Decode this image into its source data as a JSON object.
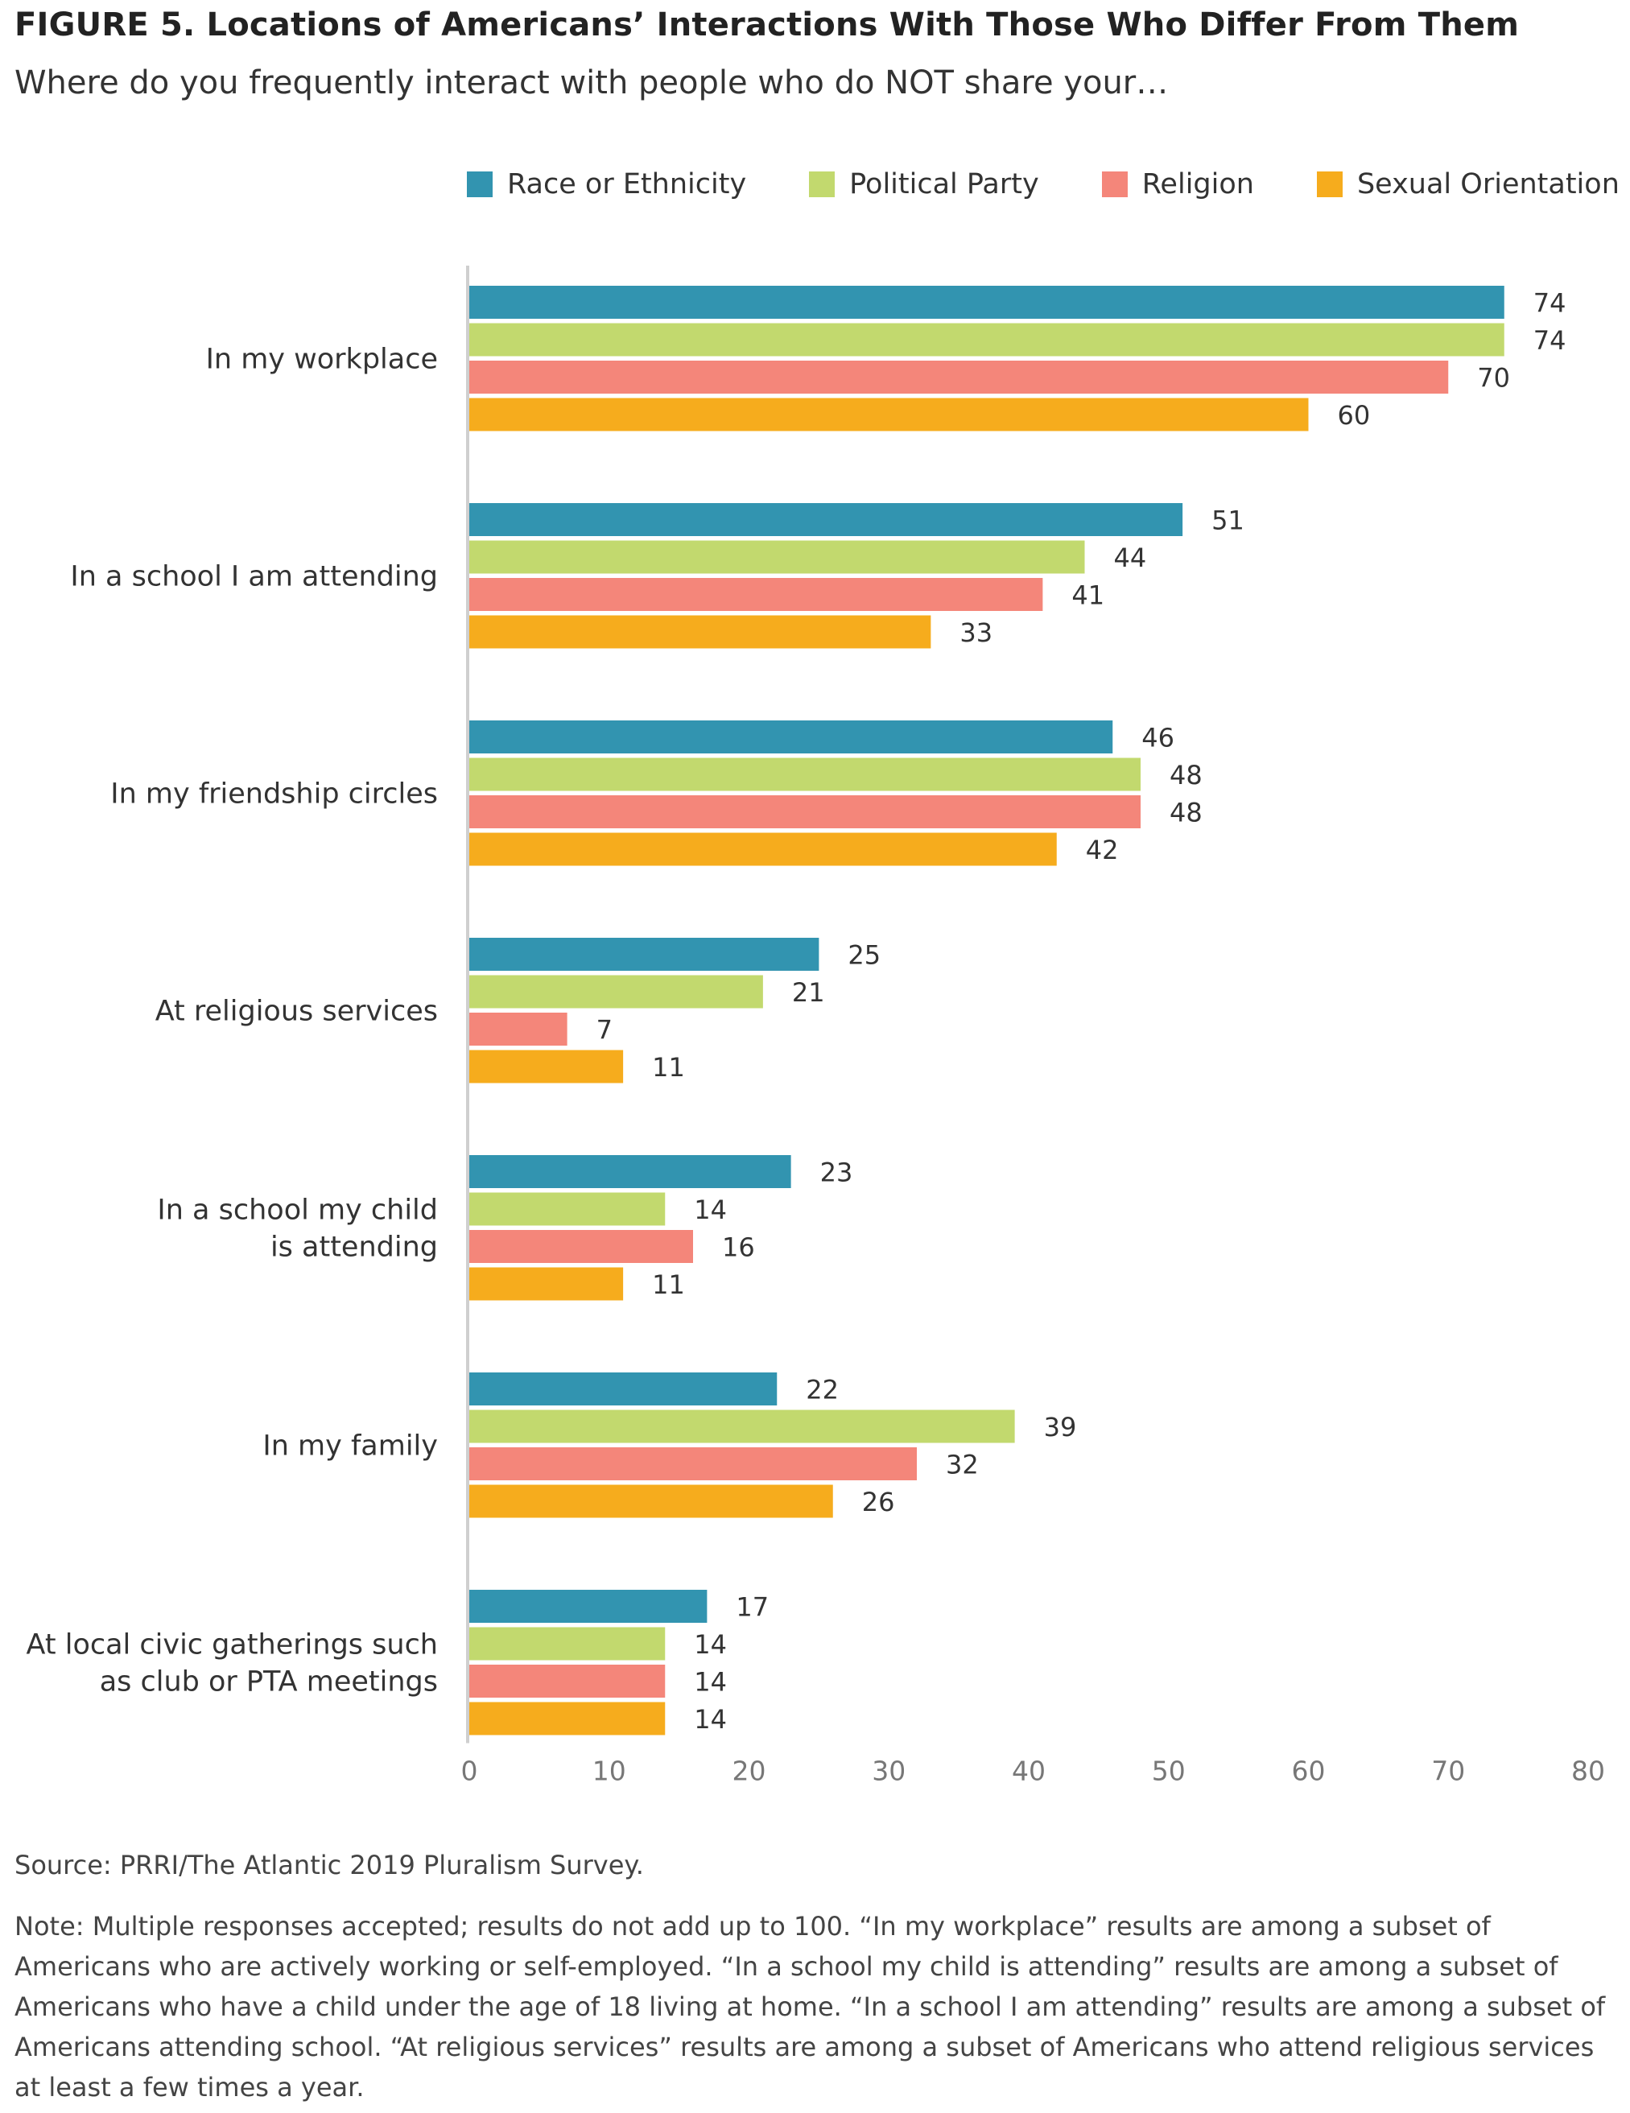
{
  "title": "FIGURE 5. Locations of Americans’ Interactions With Those Who Differ From Them",
  "subtitle": "Where do you frequently interact with people who do NOT share your…",
  "source": "Source: PRRI/The Atlantic 2019 Pluralism Survey.",
  "note": "Note: Multiple responses accepted; results do not add up to 100. “In my workplace” results are among a subset of Americans who are actively working or self-employed. “In a school my child is attending” results are among a subset of Americans who have a child under the age of 18 living at home. “In a school I am attending” results are among a subset of Americans attending school. “At religious services” results are among a subset of Americans who attend religious services at least a few times a year.",
  "chart_data": {
    "type": "bar",
    "orientation": "horizontal",
    "title": "FIGURE 5. Locations of Americans’ Interactions With Those Who Differ From Them",
    "subtitle": "Where do you frequently interact with people who do NOT share your…",
    "categories": [
      [
        "In my workplace"
      ],
      [
        "In a school I am attending"
      ],
      [
        "In my friendship circles"
      ],
      [
        "At religious services"
      ],
      [
        "In a school my child",
        "is attending"
      ],
      [
        "In my family"
      ],
      [
        "At local civic gatherings such",
        "as club or PTA meetings"
      ]
    ],
    "series": [
      {
        "name": "Race or Ethnicity",
        "color": "#3294b0",
        "values": [
          74,
          51,
          46,
          25,
          23,
          22,
          17
        ]
      },
      {
        "name": "Political Party",
        "color": "#c2d96e",
        "values": [
          74,
          44,
          48,
          21,
          14,
          39,
          14
        ]
      },
      {
        "name": "Religion",
        "color": "#f4867a",
        "values": [
          70,
          41,
          48,
          7,
          16,
          32,
          14
        ]
      },
      {
        "name": "Sexual Orientation",
        "color": "#f6ac1d",
        "values": [
          60,
          33,
          42,
          11,
          11,
          26,
          14
        ]
      }
    ],
    "xlim": [
      0,
      80
    ],
    "xticks": [
      0,
      10,
      20,
      30,
      40,
      50,
      60,
      70,
      80
    ],
    "legend_position": "top-right",
    "grid": false,
    "data_labels": true
  }
}
